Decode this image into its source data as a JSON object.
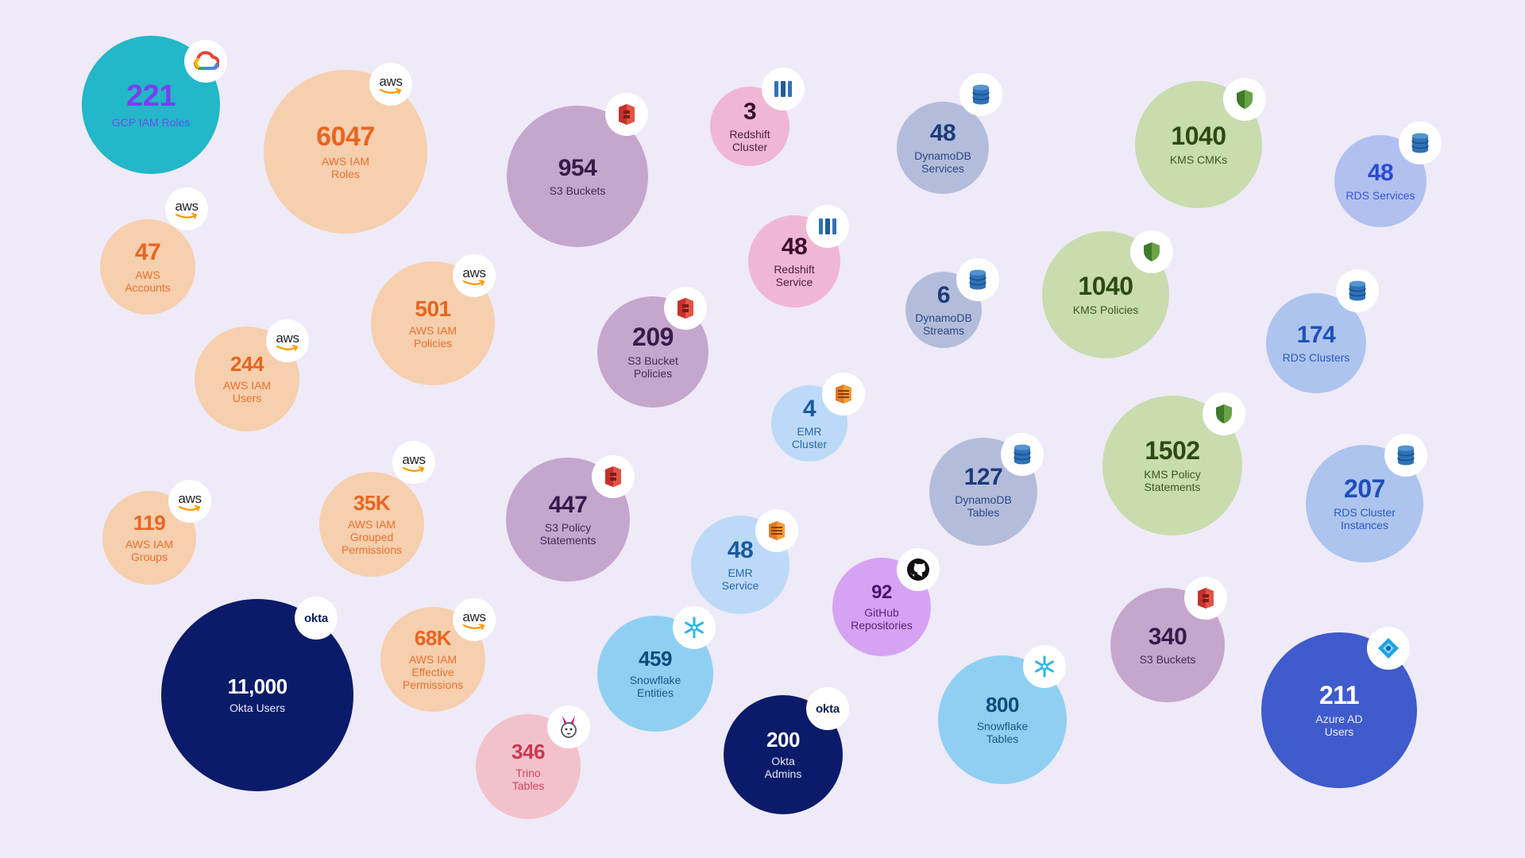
{
  "chart_data": {
    "type": "bubble",
    "title": "",
    "bubbles": [
      {
        "value": "221",
        "label": "GCP IAM Roles",
        "source": "gcp",
        "icon": "google-cloud-icon",
        "fill": "#22b7c9",
        "text_color": "#7b3ff2"
      },
      {
        "value": "6047",
        "label": "AWS IAM\nRoles",
        "source": "aws",
        "icon": "aws-logo-icon",
        "fill": "#f6cfae",
        "text_color": "#e8651f"
      },
      {
        "value": "954",
        "label": "S3 Buckets",
        "source": "aws-s3",
        "icon": "s3-bucket-icon",
        "fill": "#c5a6cd",
        "text_color": "#3a1a4a"
      },
      {
        "value": "3",
        "label": "Redshift\nCluster",
        "source": "aws-redshift",
        "icon": "redshift-icon",
        "fill": "#f0b7d4",
        "text_color": "#3a0f2a"
      },
      {
        "value": "48",
        "label": "DynamoDB\nServices",
        "source": "aws-dynamodb",
        "icon": "dynamodb-icon",
        "fill": "#b3bddb",
        "text_color": "#1e3a7a"
      },
      {
        "value": "1040",
        "label": "KMS CMKs",
        "source": "aws-kms",
        "icon": "kms-shield-icon",
        "fill": "#c8dcae",
        "text_color": "#2e4a12"
      },
      {
        "value": "48",
        "label": "RDS Services",
        "source": "aws-rds",
        "icon": "rds-icon",
        "fill": "#b2c0f0",
        "text_color": "#2b4ad1"
      },
      {
        "value": "47",
        "label": "AWS\nAccounts",
        "source": "aws",
        "icon": "aws-logo-icon",
        "fill": "#f6cfae",
        "text_color": "#e8651f"
      },
      {
        "value": "48",
        "label": "Redshift\nService",
        "source": "aws-redshift",
        "icon": "redshift-icon",
        "fill": "#f0b7d4",
        "text_color": "#3a0f2a"
      },
      {
        "value": "6",
        "label": "DynamoDB\nStreams",
        "source": "aws-dynamodb",
        "icon": "dynamodb-icon",
        "fill": "#b3bddb",
        "text_color": "#1e3a7a"
      },
      {
        "value": "1040",
        "label": "KMS Policies",
        "source": "aws-kms",
        "icon": "kms-shield-icon",
        "fill": "#c8dcae",
        "text_color": "#2e4a12"
      },
      {
        "value": "174",
        "label": "RDS Clusters",
        "source": "aws-rds",
        "icon": "rds-icon",
        "fill": "#adc4ee",
        "text_color": "#1f4fb8"
      },
      {
        "value": "501",
        "label": "AWS IAM\nPolicies",
        "source": "aws",
        "icon": "aws-logo-icon",
        "fill": "#f6cfae",
        "text_color": "#e8651f"
      },
      {
        "value": "209",
        "label": "S3 Bucket\nPolicies",
        "source": "aws-s3",
        "icon": "s3-bucket-icon",
        "fill": "#c5a6cd",
        "text_color": "#3a1a4a"
      },
      {
        "value": "244",
        "label": "AWS IAM\nUsers",
        "source": "aws",
        "icon": "aws-logo-icon",
        "fill": "#f6cfae",
        "text_color": "#e8651f"
      },
      {
        "value": "4",
        "label": "EMR\nCluster",
        "source": "aws-emr",
        "icon": "emr-icon",
        "fill": "#bcdaf8",
        "text_color": "#1a5a9e"
      },
      {
        "value": "127",
        "label": "DynamoDB\nTables",
        "source": "aws-dynamodb",
        "icon": "dynamodb-icon",
        "fill": "#b3bddb",
        "text_color": "#1e3a7a"
      },
      {
        "value": "1502",
        "label": "KMS Policy\nStatements",
        "source": "aws-kms",
        "icon": "kms-shield-icon",
        "fill": "#c8dcae",
        "text_color": "#2e4a12"
      },
      {
        "value": "207",
        "label": "RDS Cluster\nInstances",
        "source": "aws-rds",
        "icon": "rds-icon",
        "fill": "#adc4ee",
        "text_color": "#1f4fb8"
      },
      {
        "value": "119",
        "label": "AWS IAM\nGroups",
        "source": "aws",
        "icon": "aws-logo-icon",
        "fill": "#f6cfae",
        "text_color": "#e8651f"
      },
      {
        "value": "35K",
        "label": "AWS IAM\nGrouped\nPermissions",
        "source": "aws",
        "icon": "aws-logo-icon",
        "fill": "#f6cfae",
        "text_color": "#e8651f"
      },
      {
        "value": "447",
        "label": "S3 Policy\nStatements",
        "source": "aws-s3",
        "icon": "s3-bucket-icon",
        "fill": "#c5a6cd",
        "text_color": "#3a1a4a"
      },
      {
        "value": "48",
        "label": "EMR\nService",
        "source": "aws-emr",
        "icon": "emr-icon",
        "fill": "#bcdaf8",
        "text_color": "#1a5a9e"
      },
      {
        "value": "92",
        "label": "GitHub\nRepositories",
        "source": "github",
        "icon": "github-icon",
        "fill": "#d6a3f2",
        "text_color": "#4a1570"
      },
      {
        "value": "340",
        "label": "S3 Buckets",
        "source": "aws-s3",
        "icon": "s3-bucket-icon",
        "fill": "#c5a6cd",
        "text_color": "#3a1a4a"
      },
      {
        "value": "11,000",
        "label": "Okta Users",
        "source": "okta",
        "icon": "okta-logo-icon",
        "fill": "#0b1b6a",
        "text_color": "#ffffff"
      },
      {
        "value": "68K",
        "label": "AWS IAM\nEffective\nPermissions",
        "source": "aws",
        "icon": "aws-logo-icon",
        "fill": "#f6cfae",
        "text_color": "#e8651f"
      },
      {
        "value": "459",
        "label": "Snowflake\nEntities",
        "source": "snowflake",
        "icon": "snowflake-icon",
        "fill": "#8fd0f2",
        "text_color": "#0f4a7a"
      },
      {
        "value": "346",
        "label": "Trino\nTables",
        "source": "trino",
        "icon": "trino-bunny-icon",
        "fill": "#f3c1cc",
        "text_color": "#c8384f"
      },
      {
        "value": "200",
        "label": "Okta\nAdmins",
        "source": "okta",
        "icon": "okta-logo-icon",
        "fill": "#0b1b6a",
        "text_color": "#ffffff"
      },
      {
        "value": "800",
        "label": "Snowflake\nTables",
        "source": "snowflake",
        "icon": "snowflake-icon",
        "fill": "#8fd0f2",
        "text_color": "#0f4a7a"
      },
      {
        "value": "211",
        "label": "Azure AD\nUsers",
        "source": "azure",
        "icon": "azure-ad-icon",
        "fill": "#3f5bcc",
        "text_color": "#ffffff"
      }
    ]
  },
  "logos": {
    "aws": "aws",
    "okta": "okta"
  },
  "colors": {
    "background": "#efeaf7",
    "gcp_teal": "#22b7c9",
    "aws_orange": "#e8651f",
    "okta_navy": "#0b1b6a",
    "azure_blue": "#3f5bcc"
  }
}
